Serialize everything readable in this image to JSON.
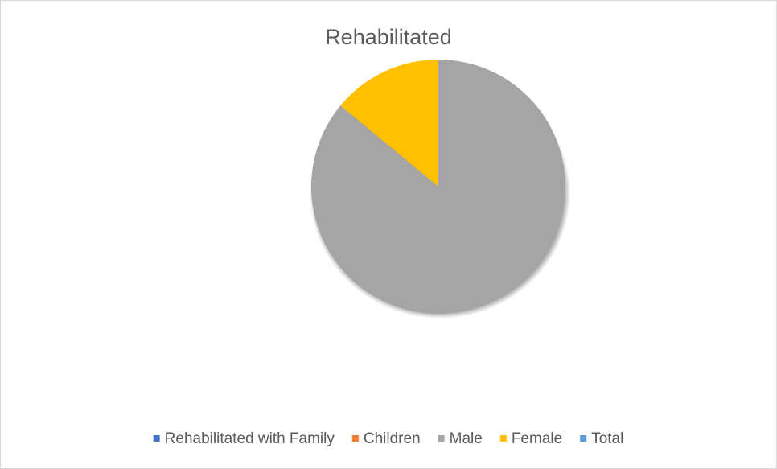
{
  "chart_data": {
    "type": "pie",
    "title": "Rehabilitated",
    "categories": [
      "Rehabilitated with Family",
      "Children",
      "Male",
      "Female",
      "Total"
    ],
    "values": [
      0,
      0,
      86,
      14,
      0
    ],
    "colors": [
      "#4472c4",
      "#ed7d31",
      "#a5a5a5",
      "#ffc000",
      "#5b9bd5"
    ],
    "legend": "bottom"
  }
}
